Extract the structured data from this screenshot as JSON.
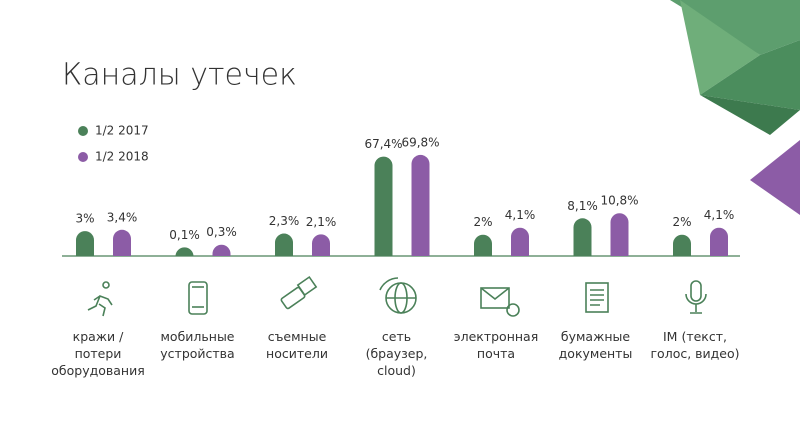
{
  "chart_data": {
    "type": "bar",
    "title": "Каналы утечек",
    "categories": [
      "кражи /\nпотери\nоборудования",
      "мобильные\nустройства",
      "съемные\nносители",
      "сеть\n(браузер,\ncloud)",
      "электронная\nпочта",
      "бумажные\nдокументы",
      "IM (текст,\nголос, видео)"
    ],
    "series": [
      {
        "name": "1/2 2017",
        "color": "#4b8159",
        "values": [
          3,
          0.1,
          2.3,
          67.4,
          2,
          8.1,
          2
        ],
        "value_labels": [
          "3%",
          "0,1%",
          "2,3%",
          "67,4%",
          "2%",
          "8,1%",
          "2%"
        ]
      },
      {
        "name": "1/2 2018",
        "color": "#8c5ca6",
        "values": [
          3.4,
          0.3,
          2.1,
          69.8,
          4.1,
          10.8,
          4.1
        ],
        "value_labels": [
          "3,4%",
          "0,3%",
          "2,1%",
          "69,8%",
          "4,1%",
          "10,8%",
          "4,1%"
        ]
      }
    ]
  }
}
